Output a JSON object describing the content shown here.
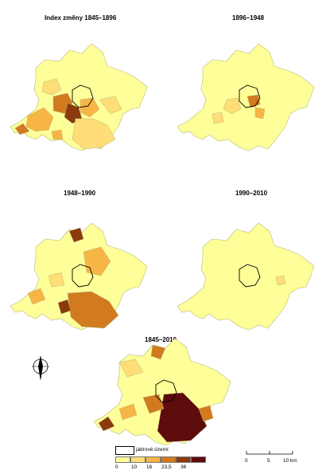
{
  "panels": [
    {
      "title": "Index změny 1845–1896"
    },
    {
      "title": "1896–1948"
    },
    {
      "title": "1948–1990"
    },
    {
      "title": "1990–2010"
    },
    {
      "title": "1845–2010"
    }
  ],
  "legend": {
    "core_label": "jádrové území",
    "class_colors": [
      "#ffff99",
      "#ffdd77",
      "#f7b545",
      "#d17a1e",
      "#8b3a0c",
      "#5e0b0b"
    ],
    "breaks": [
      "0",
      "10",
      "16",
      "23,5",
      "36"
    ]
  },
  "scale_bar": {
    "labels": [
      "0",
      "5",
      "10 km"
    ]
  },
  "north_arrow": {
    "icon": "north-arrow-icon"
  }
}
